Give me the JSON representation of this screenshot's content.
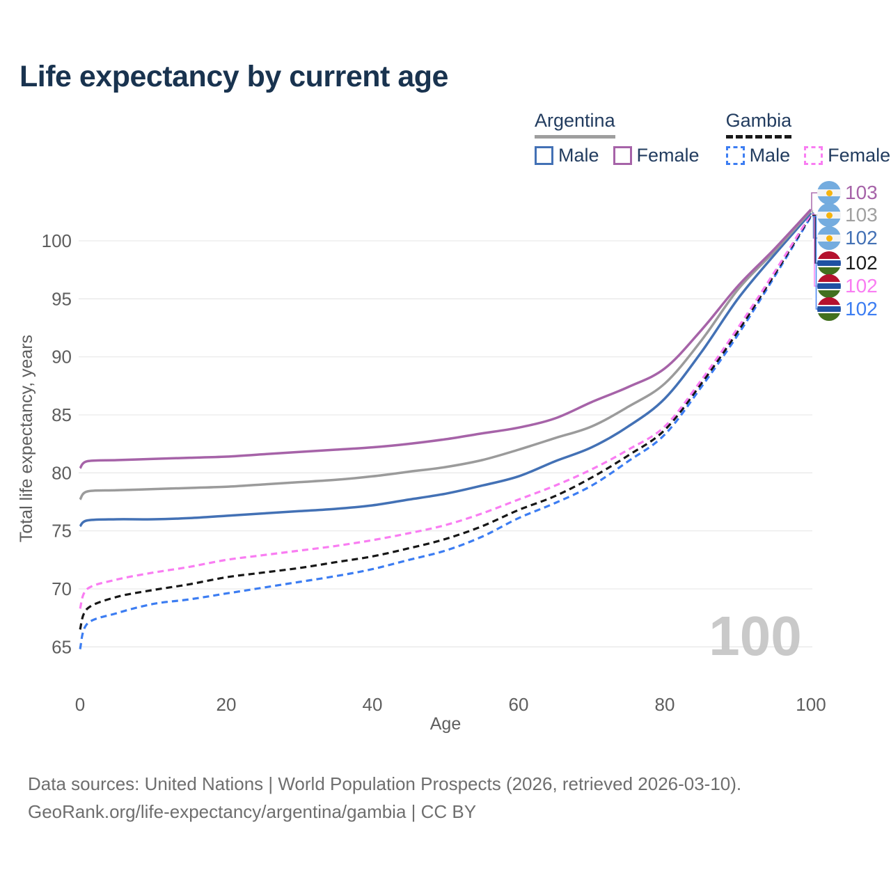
{
  "title": "Life expectancy by current age",
  "watermark": "100",
  "legend": {
    "groups": [
      {
        "name": "Argentina",
        "line_style": "solid",
        "underline_color": "#9e9e9e",
        "items": [
          {
            "label": "Male",
            "color": "#4371b5"
          },
          {
            "label": "Female",
            "color": "#a663a8"
          }
        ]
      },
      {
        "name": "Gambia",
        "line_style": "dashed",
        "underline_color": "#191919",
        "items": [
          {
            "label": "Male",
            "color": "#3c7df2"
          },
          {
            "label": "Female",
            "color": "#f97df2"
          }
        ]
      }
    ]
  },
  "right_labels": [
    {
      "flag": "argentina",
      "value": "103",
      "color": "#a663a8"
    },
    {
      "flag": "argentina",
      "value": "103",
      "color": "#a0a0a0"
    },
    {
      "flag": "argentina",
      "value": "102",
      "color": "#4371b5"
    },
    {
      "flag": "gambia",
      "value": "102",
      "color": "#1c1c1c"
    },
    {
      "flag": "gambia",
      "value": "102",
      "color": "#f97df2"
    },
    {
      "flag": "gambia",
      "value": "102",
      "color": "#3c7df2"
    }
  ],
  "footer": {
    "line1": "Data sources: United Nations | World Population Prospects (2026, retrieved 2026-03-10).",
    "line2": "GeoRank.org/life-expectancy/argentina/gambia | CC BY"
  },
  "chart_data": {
    "type": "line",
    "title": "Life expectancy by current age",
    "xlabel": "Age",
    "ylabel": "Total life expectancy, years",
    "x_ticks": [
      0,
      20,
      40,
      60,
      80,
      100
    ],
    "y_ticks": [
      65,
      70,
      75,
      80,
      85,
      90,
      95,
      100
    ],
    "xlim": [
      0,
      100
    ],
    "ylim": [
      64,
      103.5
    ],
    "grid": "horizontal",
    "legend_position": "top-right",
    "x": [
      0,
      1,
      5,
      10,
      15,
      20,
      25,
      30,
      35,
      40,
      45,
      50,
      55,
      60,
      65,
      70,
      75,
      80,
      85,
      90,
      95,
      100
    ],
    "series": [
      {
        "name": "Argentina Female",
        "color": "#a663a8",
        "dash": "solid",
        "end_label": "103",
        "values": [
          80.4,
          81.0,
          81.1,
          81.2,
          81.3,
          81.4,
          81.6,
          81.8,
          82.0,
          82.2,
          82.5,
          82.9,
          83.4,
          83.9,
          84.7,
          86.1,
          87.4,
          89.0,
          92.3,
          96.1,
          99.3,
          102.7
        ]
      },
      {
        "name": "Argentina Both sexes",
        "color": "#9b9b9b",
        "dash": "solid",
        "end_label": "103",
        "values": [
          77.7,
          78.4,
          78.5,
          78.6,
          78.7,
          78.8,
          79.0,
          79.2,
          79.4,
          79.7,
          80.1,
          80.5,
          81.1,
          82.0,
          83.0,
          84.0,
          85.7,
          87.7,
          91.4,
          95.8,
          99.1,
          102.6
        ]
      },
      {
        "name": "Argentina Male",
        "color": "#4371b5",
        "dash": "solid",
        "end_label": "102",
        "values": [
          75.4,
          75.9,
          76.0,
          76.0,
          76.1,
          76.3,
          76.5,
          76.7,
          76.9,
          77.2,
          77.7,
          78.2,
          78.9,
          79.7,
          81.0,
          82.2,
          84.0,
          86.4,
          90.4,
          95.0,
          98.8,
          102.4
        ]
      },
      {
        "name": "Gambia Female",
        "color": "#f97df2",
        "dash": "dashed",
        "end_label": "102",
        "values": [
          68.3,
          70.0,
          70.8,
          71.4,
          71.9,
          72.5,
          72.9,
          73.3,
          73.7,
          74.2,
          74.8,
          75.5,
          76.5,
          77.7,
          78.9,
          80.3,
          82.0,
          84.0,
          88.0,
          92.5,
          97.3,
          102.3
        ]
      },
      {
        "name": "Gambia Both sexes",
        "color": "#171717",
        "dash": "dashed",
        "end_label": "102",
        "values": [
          66.5,
          68.3,
          69.3,
          69.9,
          70.4,
          71.0,
          71.4,
          71.8,
          72.3,
          72.8,
          73.5,
          74.3,
          75.4,
          76.8,
          78.0,
          79.6,
          81.5,
          83.7,
          87.7,
          92.2,
          97.1,
          102.2
        ]
      },
      {
        "name": "Gambia Male",
        "color": "#3c7df2",
        "dash": "dashed",
        "end_label": "102",
        "values": [
          64.8,
          67.0,
          67.9,
          68.7,
          69.1,
          69.6,
          70.1,
          70.6,
          71.1,
          71.7,
          72.5,
          73.3,
          74.5,
          76.1,
          77.4,
          78.9,
          81.0,
          83.3,
          87.4,
          91.9,
          96.9,
          102.1
        ]
      }
    ]
  }
}
